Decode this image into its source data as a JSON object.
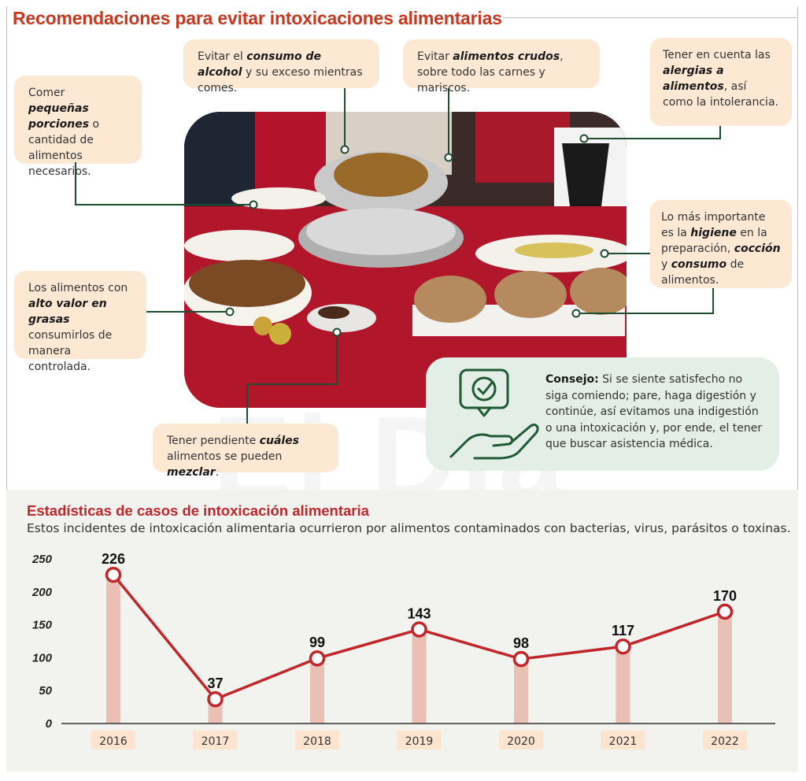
{
  "title": "Recomendaciones para evitar intoxicaciones alimentarias",
  "tips": {
    "porciones": [
      "Comer ",
      "pequeñas porciones",
      " o cantidad de alimentos necesarios."
    ],
    "alcohol": [
      "Evitar el ",
      "consumo de alcohol",
      " y su exceso mientras comes."
    ],
    "crudos": [
      "Evitar ",
      "alimentos crudos",
      ", sobre todo las carnes y mariscos."
    ],
    "alergias": [
      "Tener en cuenta las ",
      "alergias a alimentos",
      ", así como la intolerancia."
    ],
    "grasas": [
      "Los alimentos con ",
      "alto valor en grasas",
      " consumirlos de manera controlada."
    ],
    "higiene": [
      "Lo más importante es la ",
      "higiene",
      " en la preparación, ",
      "cocción",
      " y ",
      "consumo",
      " de alimentos."
    ],
    "mezclar": [
      "Tener pendiente ",
      "cuáles",
      " alimentos se pueden ",
      "mezclar",
      "."
    ]
  },
  "consejo": {
    "label": "Consejo:",
    "text": " Si se siente satisfecho no siga comiendo; pare, haga digestión y continúe, así evitamos una indigestión o una intoxicación y, por ende, el tener que buscar asistencia médica."
  },
  "stats": {
    "title": "Estadísticas de casos de intoxicación alimentaria",
    "subtitle": "Estos incidentes de intoxicación alimentaria ocurrieron por alimentos contaminados con bacterias, virus, parásitos o toxinas."
  },
  "watermark": "El Día",
  "colors": {
    "line": "#c0262a",
    "bar": "#eab7a9",
    "tipbg": "#fde9d3",
    "connector": "#1f4d2f",
    "consejo": "#e2eee6"
  },
  "chart_data": {
    "type": "line",
    "title": "Estadísticas de casos de intoxicación alimentaria",
    "categories": [
      "2016",
      "2017",
      "2018",
      "2019",
      "2020",
      "2021",
      "2022"
    ],
    "values": [
      226,
      37,
      99,
      143,
      98,
      117,
      170
    ],
    "yticks": [
      0,
      50,
      100,
      150,
      200,
      250
    ],
    "ylim": [
      0,
      250
    ],
    "xlabel": "",
    "ylabel": "",
    "grid": false
  }
}
